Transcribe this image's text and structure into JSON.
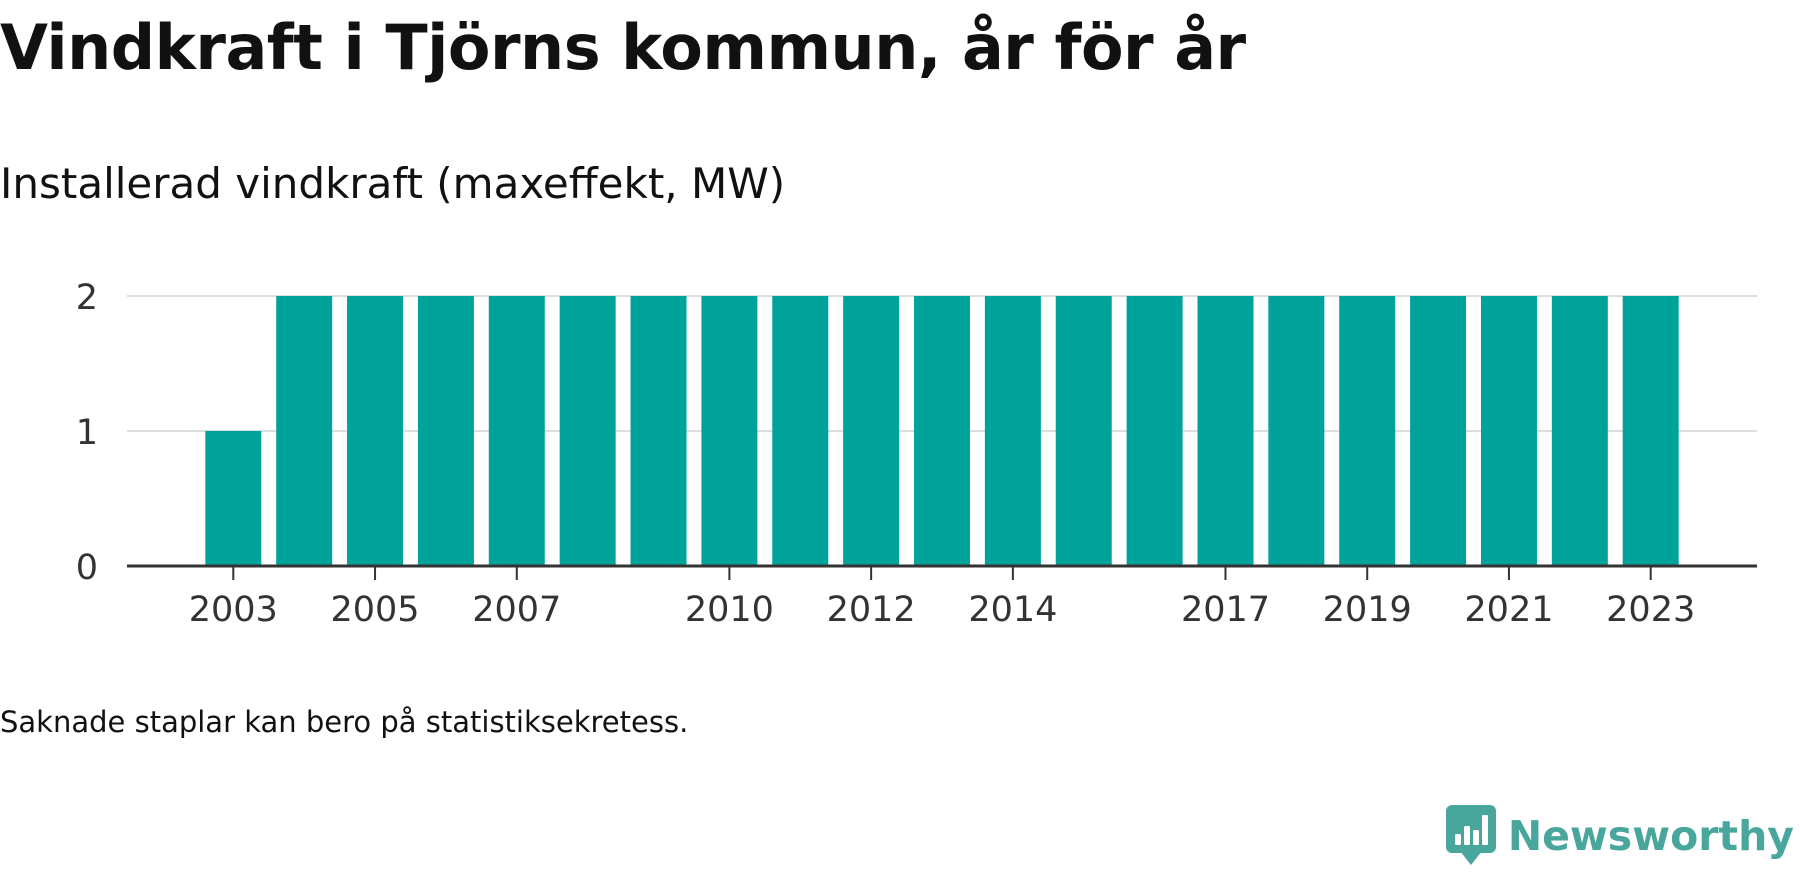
{
  "header": {
    "title": "Vindkraft i Tjörns kommun, år för år",
    "subtitle": "Installerad vindkraft (maxeffekt, MW)"
  },
  "footer": {
    "note": "Saknade staplar kan bero på statistiksekretess.",
    "brand": "Newsworthy",
    "brand_icon": "newsworthy-logo-icon",
    "brand_color": "#49a69c"
  },
  "chart_data": {
    "type": "bar",
    "x": [
      2003,
      2004,
      2005,
      2006,
      2007,
      2008,
      2009,
      2010,
      2011,
      2012,
      2013,
      2014,
      2015,
      2016,
      2017,
      2018,
      2019,
      2020,
      2021,
      2022,
      2023
    ],
    "values": [
      1,
      2,
      2,
      2,
      2,
      2,
      2,
      2,
      2,
      2,
      2,
      2,
      2,
      2,
      2,
      2,
      2,
      2,
      2,
      2,
      2
    ],
    "x_tick_labels": [
      "2003",
      "2005",
      "2007",
      "2010",
      "2012",
      "2014",
      "2017",
      "2019",
      "2021",
      "2023"
    ],
    "y_ticks": [
      0,
      1,
      2
    ],
    "ylim": [
      0,
      2
    ],
    "xlim": [
      2001.5,
      2024.5
    ],
    "title": "",
    "xlabel": "",
    "ylabel": "",
    "bar_color": "#00a399",
    "grid": true,
    "grid_color": "#dddddd",
    "axis_color": "#333333",
    "legend": "none"
  }
}
